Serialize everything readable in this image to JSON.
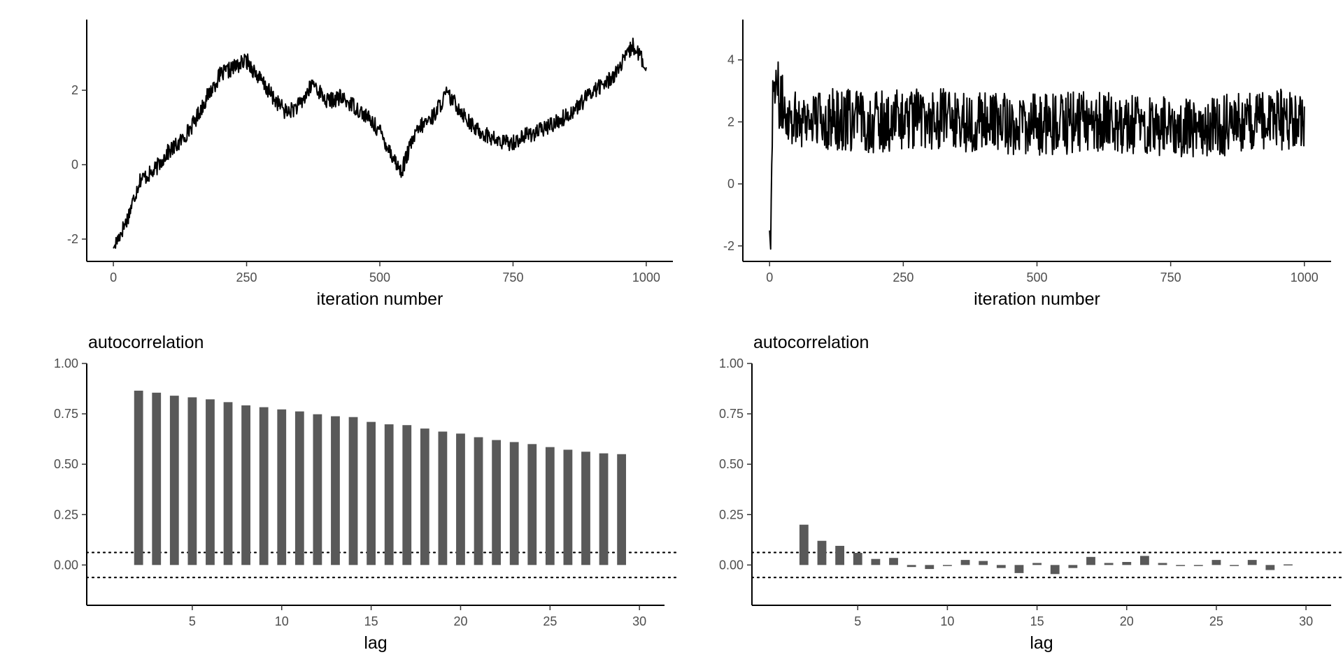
{
  "chart_data": [
    {
      "panel": "top-left",
      "type": "line",
      "xlabel": "iteration number",
      "ylabel": "",
      "xlim": [
        -50,
        1050
      ],
      "ylim": [
        -2.6,
        3.9
      ],
      "xticks": [
        0,
        250,
        500,
        750,
        1000
      ],
      "yticks": [
        -2,
        0,
        2
      ],
      "ytick_labels": [
        "-2",
        "0",
        "2"
      ],
      "grid": false,
      "color": "#000000",
      "series": [
        {
          "x": [
            0,
            25,
            50,
            75,
            100,
            125,
            150,
            175,
            200,
            225,
            250,
            275,
            300,
            325,
            350,
            375,
            400,
            425,
            450,
            475,
            500,
            525,
            540,
            560,
            575,
            600,
            625,
            650,
            675,
            700,
            725,
            750,
            775,
            800,
            825,
            850,
            875,
            900,
            925,
            950,
            975,
            990,
            1000
          ],
          "y": [
            -2.25,
            -1.5,
            -0.4,
            -0.2,
            0.3,
            0.6,
            1.1,
            1.8,
            2.4,
            2.6,
            2.8,
            2.3,
            1.8,
            1.4,
            1.6,
            2.2,
            1.7,
            1.8,
            1.6,
            1.3,
            0.9,
            0.2,
            -0.2,
            0.6,
            1.0,
            1.3,
            1.9,
            1.5,
            1.0,
            0.8,
            0.6,
            0.6,
            0.8,
            0.9,
            1.1,
            1.3,
            1.6,
            2.0,
            2.2,
            2.6,
            3.2,
            2.9,
            2.4
          ]
        }
      ],
      "noise_amplitude": 0.22
    },
    {
      "panel": "top-right",
      "type": "line",
      "xlabel": "iteration number",
      "ylabel": "",
      "xlim": [
        -50,
        1050
      ],
      "ylim": [
        -2.5,
        5.3
      ],
      "xticks": [
        0,
        250,
        500,
        750,
        1000
      ],
      "yticks": [
        -2,
        0,
        2,
        4
      ],
      "ytick_labels": [
        "-2",
        "0",
        "2",
        "4"
      ],
      "grid": false,
      "color": "#000000",
      "series": [
        {
          "x": [
            0,
            2,
            4,
            6,
            10,
            20,
            40,
            100,
            200,
            300,
            400,
            500,
            600,
            700,
            800,
            900,
            1000
          ],
          "y": [
            -1.5,
            -2.1,
            1.0,
            3.0,
            3.5,
            2.6,
            2.2,
            2.1,
            2.0,
            2.1,
            2.0,
            1.9,
            2.0,
            1.9,
            1.8,
            2.0,
            2.1
          ]
        }
      ],
      "noise_amplitude": 1.0
    },
    {
      "panel": "bottom-left",
      "type": "bar",
      "title": "autocorrelation",
      "xlabel": "lag",
      "ylabel": "",
      "xlim": [
        -0.9,
        31.4
      ],
      "ylim": [
        -0.2,
        1.0
      ],
      "xticks": [
        5,
        10,
        15,
        20,
        25,
        30
      ],
      "yticks": [
        0,
        0.25,
        0.5,
        0.75,
        1.0
      ],
      "ytick_labels": [
        "0.00",
        "0.25",
        "0.50",
        "0.75",
        "1.00"
      ],
      "grid": false,
      "bar_color": "#595959",
      "categories": [
        2,
        3,
        4,
        5,
        6,
        7,
        8,
        9,
        10,
        11,
        12,
        13,
        14,
        15,
        16,
        17,
        18,
        19,
        20,
        21,
        22,
        23,
        24,
        25,
        26,
        27,
        28,
        29
      ],
      "values": [
        0.865,
        0.855,
        0.84,
        0.832,
        0.822,
        0.808,
        0.792,
        0.783,
        0.772,
        0.762,
        0.748,
        0.738,
        0.734,
        0.71,
        0.698,
        0.694,
        0.677,
        0.662,
        0.652,
        0.634,
        0.62,
        0.61,
        0.6,
        0.585,
        0.572,
        0.562,
        0.554,
        0.55
      ],
      "reference_lines": [
        0.062,
        -0.062
      ]
    },
    {
      "panel": "bottom-right",
      "type": "bar",
      "title": "autocorrelation",
      "xlabel": "lag",
      "ylabel": "",
      "xlim": [
        -0.9,
        31.4
      ],
      "ylim": [
        -0.2,
        1.0
      ],
      "xticks": [
        5,
        10,
        15,
        20,
        25,
        30
      ],
      "yticks": [
        0,
        0.25,
        0.5,
        0.75,
        1.0
      ],
      "ytick_labels": [
        "0.00",
        "0.25",
        "0.50",
        "0.75",
        "1.00"
      ],
      "grid": false,
      "bar_color": "#595959",
      "categories": [
        2,
        3,
        4,
        5,
        6,
        7,
        8,
        9,
        10,
        11,
        12,
        13,
        14,
        15,
        16,
        17,
        18,
        19,
        20,
        21,
        22,
        23,
        24,
        25,
        26,
        27,
        28,
        29
      ],
      "values": [
        0.2,
        0.12,
        0.095,
        0.06,
        0.03,
        0.035,
        -0.01,
        -0.02,
        -0.005,
        0.025,
        0.02,
        -0.015,
        -0.04,
        0.01,
        -0.045,
        -0.015,
        0.04,
        0.01,
        0.015,
        0.045,
        0.01,
        -0.005,
        -0.005,
        0.025,
        -0.003,
        0.025,
        -0.025,
        0.003
      ],
      "reference_lines": [
        0.062,
        -0.062
      ]
    }
  ]
}
